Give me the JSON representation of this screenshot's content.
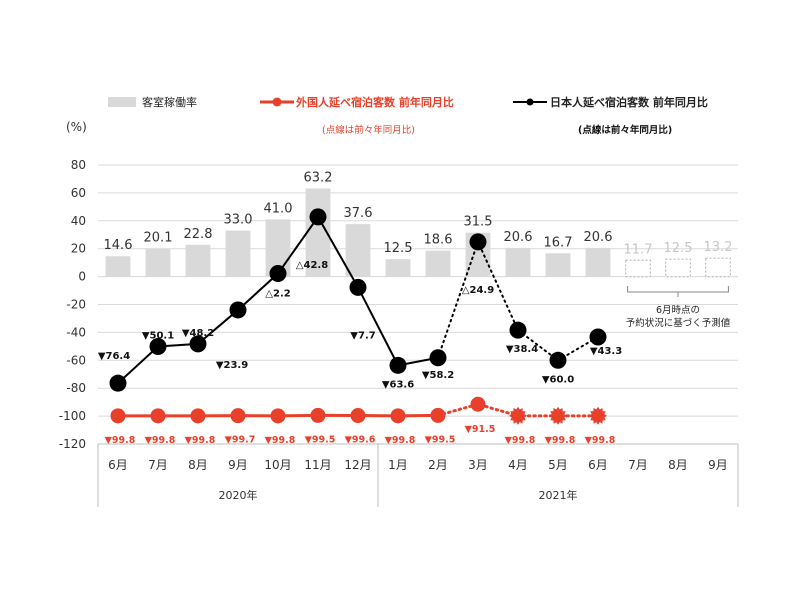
{
  "legend": {
    "bar_label": "客室稼働率",
    "foreign_label": "外国人延べ宿泊客数 前年同月比",
    "foreign_note": "(点線は前々年同月比)",
    "japanese_label": "日本人延べ宿泊客数 前年同月比",
    "japanese_note": "(点線は前々年同月比)"
  },
  "unit_label": "(%)",
  "forecast_note": [
    "6月時点の",
    "予約状況に基づく予測値"
  ],
  "colors": {
    "bar": "#d9d9d9",
    "forecast_bar_border": "#bfbfbf",
    "foreign": "#e8402a",
    "japanese": "#000000",
    "grid": "#d9d9d9",
    "bar_label": "#333333",
    "forecast_label": "#c8c8c8",
    "foreign_label": "#e8402a"
  },
  "chart_data": {
    "type": "bar+line",
    "ylim": [
      -120,
      80
    ],
    "yticks": [
      80,
      60,
      40,
      20,
      0,
      -20,
      -40,
      -60,
      -80,
      -100,
      -120
    ],
    "categories": [
      "6月",
      "7月",
      "8月",
      "9月",
      "10月",
      "11月",
      "12月",
      "1月",
      "2月",
      "3月",
      "4月",
      "5月",
      "6月",
      "7月",
      "8月",
      "9月"
    ],
    "year_groups": [
      {
        "label": "2020年",
        "start": 0,
        "end": 6
      },
      {
        "label": "2021年",
        "start": 7,
        "end": 15
      }
    ],
    "bars": {
      "name": "客室稼働率",
      "values": [
        14.6,
        20.1,
        22.8,
        33.0,
        41.0,
        63.2,
        37.6,
        12.5,
        18.6,
        31.5,
        20.6,
        16.7,
        20.6,
        11.7,
        12.5,
        13.2
      ],
      "labels": [
        "14.6",
        "20.1",
        "22.8",
        "33.0",
        "41.0",
        "63.2",
        "37.6",
        "12.5",
        "18.6",
        "31.5",
        "20.6",
        "16.7",
        "20.6",
        "11.7",
        "12.5",
        "13.2"
      ],
      "forecast_from_index": 13
    },
    "japanese": {
      "name": "日本人延べ宿泊客数 前年同月比",
      "values": [
        -76.4,
        -50.1,
        -48.2,
        -23.9,
        2.2,
        42.8,
        -7.7,
        -63.6,
        -58.2,
        24.9,
        -38.4,
        -60.0,
        -43.3
      ],
      "labels": [
        "▼76.4",
        "▼50.1",
        "▼48.2",
        "▼23.9",
        "△2.2",
        "△42.8",
        "▼7.7",
        "▼63.6",
        "▼58.2",
        "△24.9",
        "▼38.4",
        "▼60.0",
        "▼43.3"
      ],
      "dotted_from_index": 9
    },
    "foreign": {
      "name": "外国人延べ宿泊客数 前年同月比",
      "values": [
        -99.8,
        -99.8,
        -99.8,
        -99.7,
        -99.8,
        -99.5,
        -99.6,
        -99.8,
        -99.5,
        -91.5,
        -99.8,
        -99.8,
        -99.8
      ],
      "labels": [
        "▼99.8",
        "▼99.8",
        "▼99.8",
        "▼99.7",
        "▼99.8",
        "▼99.5",
        "▼99.6",
        "▼99.8",
        "▼99.5",
        "▼91.5",
        "▼99.8",
        "▼99.8",
        "▼99.8"
      ],
      "dotted_from_index": 9
    }
  }
}
